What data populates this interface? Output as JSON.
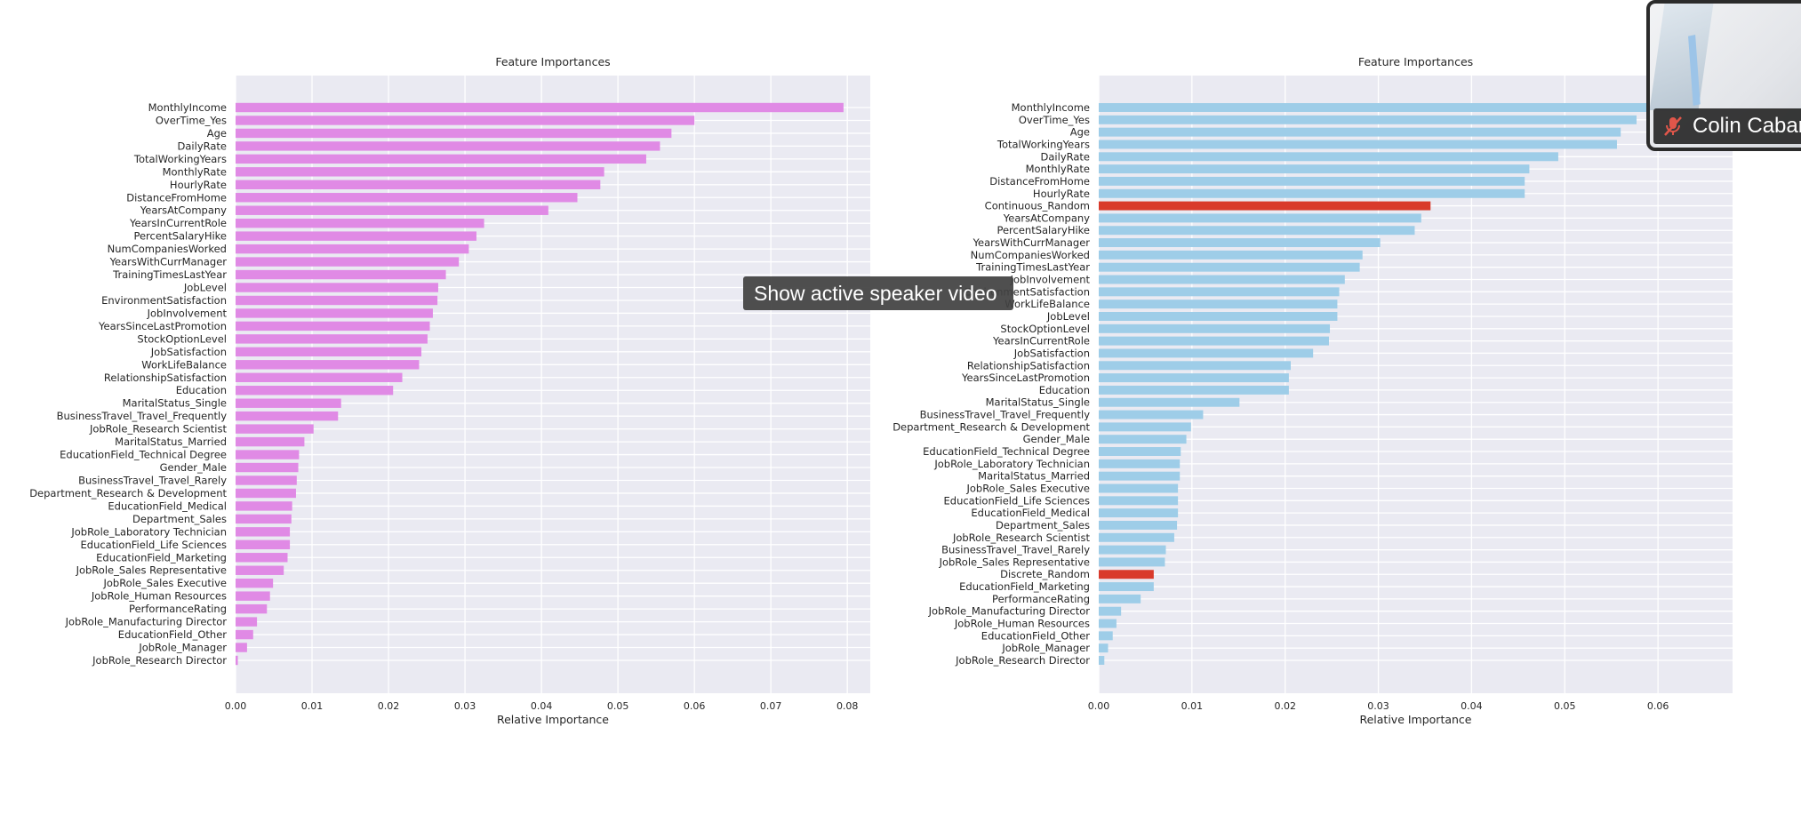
{
  "tooltip": {
    "label": "Show active speaker video"
  },
  "video": {
    "participant_name": "Colin Cabar"
  },
  "colors": {
    "left_bar": "#e08ae5",
    "right_bar": "#9ecde8",
    "highlight_bar": "#d93a2b",
    "panel_bg": "#eaeaf2"
  },
  "chart_data": [
    {
      "type": "bar",
      "orientation": "horizontal",
      "title": "Feature Importances",
      "xlabel": "Relative Importance",
      "xlim": [
        0,
        0.083
      ],
      "xticks": [
        0.0,
        0.01,
        0.02,
        0.03,
        0.04,
        0.05,
        0.06,
        0.07,
        0.08
      ],
      "tick_labels": [
        "0.00",
        "0.01",
        "0.02",
        "0.03",
        "0.04",
        "0.05",
        "0.06",
        "0.07",
        "0.08"
      ],
      "grid": true,
      "categories": [
        "MonthlyIncome",
        "OverTime_Yes",
        "Age",
        "DailyRate",
        "TotalWorkingYears",
        "MonthlyRate",
        "HourlyRate",
        "DistanceFromHome",
        "YearsAtCompany",
        "YearsInCurrentRole",
        "PercentSalaryHike",
        "NumCompaniesWorked",
        "YearsWithCurrManager",
        "TrainingTimesLastYear",
        "JobLevel",
        "EnvironmentSatisfaction",
        "JobInvolvement",
        "YearsSinceLastPromotion",
        "StockOptionLevel",
        "JobSatisfaction",
        "WorkLifeBalance",
        "RelationshipSatisfaction",
        "Education",
        "MaritalStatus_Single",
        "BusinessTravel_Travel_Frequently",
        "JobRole_Research Scientist",
        "MaritalStatus_Married",
        "EducationField_Technical Degree",
        "Gender_Male",
        "BusinessTravel_Travel_Rarely",
        "Department_Research & Development",
        "EducationField_Medical",
        "Department_Sales",
        "JobRole_Laboratory Technician",
        "EducationField_Life Sciences",
        "EducationField_Marketing",
        "JobRole_Sales Representative",
        "JobRole_Sales Executive",
        "JobRole_Human Resources",
        "PerformanceRating",
        "JobRole_Manufacturing Director",
        "EducationField_Other",
        "JobRole_Manager",
        "JobRole_Research Director"
      ],
      "values": [
        0.0795,
        0.06,
        0.057,
        0.0555,
        0.0537,
        0.0482,
        0.0477,
        0.0447,
        0.0409,
        0.0325,
        0.0315,
        0.0305,
        0.0292,
        0.0275,
        0.0265,
        0.0264,
        0.0258,
        0.0254,
        0.0251,
        0.0243,
        0.024,
        0.0218,
        0.0206,
        0.0138,
        0.0134,
        0.0102,
        0.009,
        0.0083,
        0.0082,
        0.008,
        0.0079,
        0.0074,
        0.0073,
        0.0071,
        0.0071,
        0.0068,
        0.0063,
        0.0049,
        0.0045,
        0.0041,
        0.0028,
        0.0023,
        0.0015,
        0.0003
      ],
      "highlight": []
    },
    {
      "type": "bar",
      "orientation": "horizontal",
      "title": "Feature Importances",
      "xlabel": "Relative Importance",
      "xlim": [
        0,
        0.068
      ],
      "xticks": [
        0.0,
        0.01,
        0.02,
        0.03,
        0.04,
        0.05,
        0.06
      ],
      "tick_labels": [
        "0.00",
        "0.01",
        "0.02",
        "0.03",
        "0.04",
        "0.05",
        "0.06"
      ],
      "grid": true,
      "categories": [
        "MonthlyIncome",
        "OverTime_Yes",
        "Age",
        "TotalWorkingYears",
        "DailyRate",
        "MonthlyRate",
        "DistanceFromHome",
        "HourlyRate",
        "Continuous_Random",
        "YearsAtCompany",
        "PercentSalaryHike",
        "YearsWithCurrManager",
        "NumCompaniesWorked",
        "TrainingTimesLastYear",
        "JobInvolvement",
        "EnvironmentSatisfaction",
        "WorkLifeBalance",
        "JobLevel",
        "StockOptionLevel",
        "YearsInCurrentRole",
        "JobSatisfaction",
        "RelationshipSatisfaction",
        "YearsSinceLastPromotion",
        "Education",
        "MaritalStatus_Single",
        "BusinessTravel_Travel_Frequently",
        "Department_Research & Development",
        "Gender_Male",
        "EducationField_Technical Degree",
        "JobRole_Laboratory Technician",
        "MaritalStatus_Married",
        "JobRole_Sales Executive",
        "EducationField_Life Sciences",
        "EducationField_Medical",
        "Department_Sales",
        "JobRole_Research Scientist",
        "BusinessTravel_Travel_Rarely",
        "JobRole_Sales Representative",
        "Discrete_Random",
        "EducationField_Marketing",
        "PerformanceRating",
        "JobRole_Manufacturing Director",
        "JobRole_Human Resources",
        "EducationField_Other",
        "JobRole_Manager",
        "JobRole_Research Director"
      ],
      "values": [
        0.059,
        0.0577,
        0.056,
        0.0556,
        0.0493,
        0.0462,
        0.0457,
        0.0457,
        0.0356,
        0.0346,
        0.0339,
        0.0302,
        0.0283,
        0.028,
        0.0264,
        0.0258,
        0.0256,
        0.0256,
        0.0248,
        0.0247,
        0.023,
        0.0206,
        0.0204,
        0.0204,
        0.0151,
        0.0112,
        0.0099,
        0.0094,
        0.0088,
        0.0087,
        0.0087,
        0.0085,
        0.0085,
        0.0085,
        0.0084,
        0.0081,
        0.0072,
        0.0071,
        0.0059,
        0.0059,
        0.0045,
        0.0024,
        0.0019,
        0.0015,
        0.001,
        0.0006
      ],
      "highlight": [
        "Continuous_Random",
        "Discrete_Random"
      ]
    }
  ]
}
